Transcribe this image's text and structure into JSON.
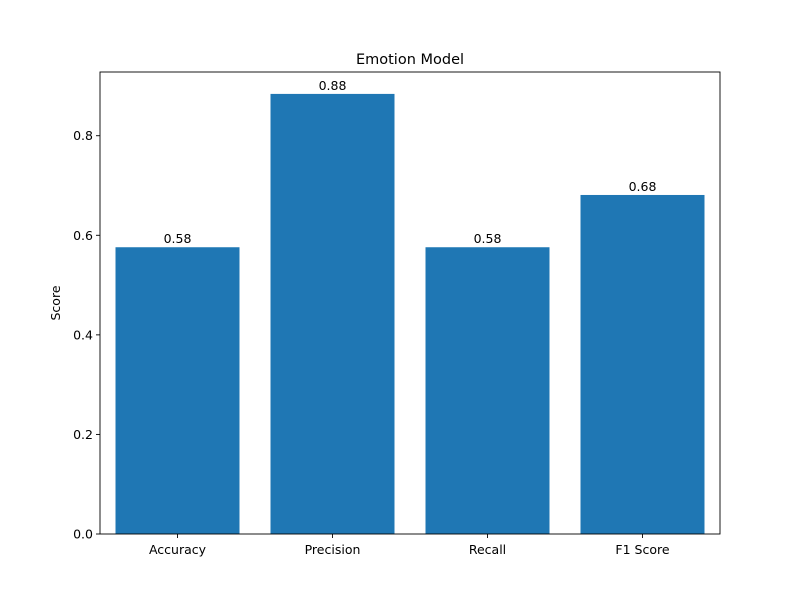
{
  "chart_data": {
    "type": "bar",
    "title": "Emotion Model",
    "xlabel": "",
    "ylabel": "Score",
    "categories": [
      "Accuracy",
      "Precision",
      "Recall",
      "F1 Score"
    ],
    "values": [
      0.576,
      0.884,
      0.576,
      0.681
    ],
    "value_labels": [
      "0.58",
      "0.88",
      "0.58",
      "0.68"
    ],
    "ylim": [
      0,
      0.928
    ],
    "yticks": [
      0.0,
      0.2,
      0.4,
      0.6,
      0.8
    ],
    "ytick_labels": [
      "0.0",
      "0.2",
      "0.4",
      "0.6",
      "0.8"
    ],
    "grid": false,
    "bar_color": "#1f77b4"
  }
}
